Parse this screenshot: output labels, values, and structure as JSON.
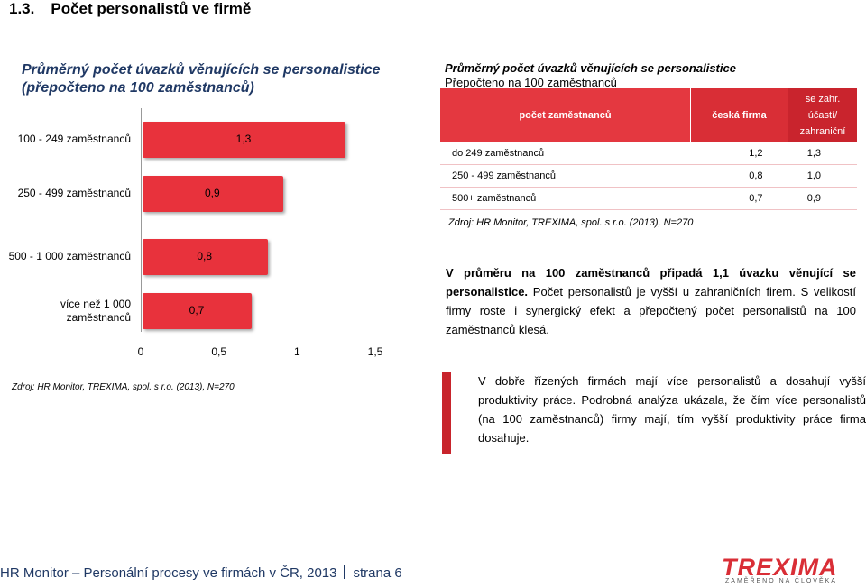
{
  "section": {
    "number": "1.3.",
    "title": "Počet personalistů ve firmě"
  },
  "chart": {
    "title_line1": "Průměrný počet úvazků věnujících se personalistice",
    "title_line2": "(přepočteno na 100 zaměstnanců)",
    "source": "Zdroj: HR Monitor, TREXIMA, spol. s r.o. (2013), N=270"
  },
  "chart_data": {
    "type": "bar",
    "orientation": "horizontal",
    "title": "Průměrný počet úvazků věnujících se personalistice (přepočteno na 100 zaměstnanců)",
    "categories": [
      "100 - 249 zaměstnanců",
      "250 - 499 zaměstnanců",
      "500 - 1 000 zaměstnanců",
      "více než 1 000 zaměstnanců"
    ],
    "values": [
      1.3,
      0.9,
      0.8,
      0.7
    ],
    "value_labels": [
      "1,3",
      "0,9",
      "0,8",
      "0,7"
    ],
    "xlim": [
      0,
      1.5
    ],
    "xticks": [
      "0",
      "0,5",
      "1",
      "1,5"
    ],
    "color": "#e8323c",
    "grid": false
  },
  "table": {
    "title_line1": "Průměrný počet úvazků věnujících se personalistice",
    "title_line2": "Přepočteno na 100 zaměstnanců",
    "headers": [
      "počet zaměstnanců",
      "česká firma",
      "se zahr. účastí/ zahraniční"
    ],
    "rows": [
      [
        "do 249 zaměstnanců",
        "1,2",
        "1,3"
      ],
      [
        "250 - 499 zaměstnanců",
        "0,8",
        "1,0"
      ],
      [
        "500+ zaměstnanců",
        "0,7",
        "0,9"
      ]
    ],
    "source": "Zdroj: HR Monitor, TREXIMA, spol. s r.o. (2013), N=270"
  },
  "text": {
    "para1_bold": "V průměru na 100 zaměstnanců připadá 1,1 úvazku věnující se personalistice.",
    "para1_rest": " Počet personalistů je vyšší u zahraničních firem. S velikostí firmy roste i synergický efekt a přepočtený počet personalistů na 100 zaměstnanců klesá.",
    "para2": "V dobře řízených firmách mají více personalistů a dosahují vyšší produktivity práce. Podrobná analýza ukázala, že čím více personalistů (na 100 zaměstnanců) firmy mají, tím vyšší produktivity práce firma dosahuje."
  },
  "footer": {
    "left": "HR Monitor – Personální procesy ve firmách v ČR, 2013",
    "page": "strana 6"
  },
  "logo": {
    "name": "TREXIMA",
    "tagline": "ZAMĚŘENO NA ČLOVĚKA"
  },
  "colors": {
    "accent": "#d92e36",
    "navy": "#1f3864"
  }
}
